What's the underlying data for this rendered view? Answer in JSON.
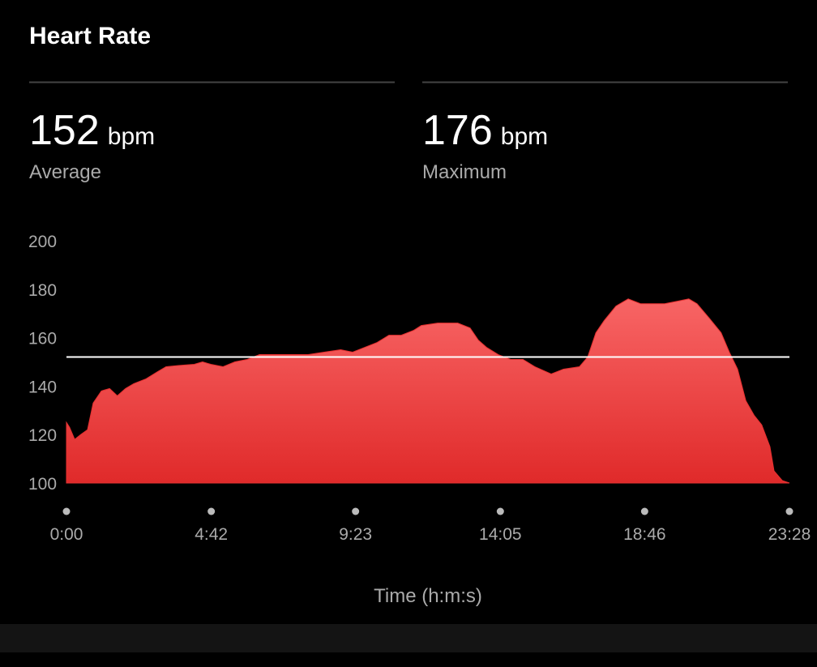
{
  "header": {
    "title": "Heart Rate"
  },
  "stats": [
    {
      "value": 152,
      "unit": "bpm",
      "label": "Average"
    },
    {
      "value": 176,
      "unit": "bpm",
      "label": "Maximum"
    }
  ],
  "chart_data": {
    "type": "area",
    "x_label": "Time (h:m:s)",
    "color": "#f05050",
    "x": [
      0,
      6,
      16,
      28,
      41,
      52,
      68,
      84,
      99,
      115,
      131,
      155,
      178,
      194,
      218,
      249,
      265,
      281,
      305,
      328,
      352,
      376,
      407,
      439,
      470,
      502,
      534,
      557,
      581,
      605,
      628,
      652,
      676,
      691,
      723,
      762,
      786,
      802,
      818,
      841,
      865,
      889,
      912,
      944,
      968,
      999,
      1015,
      1031,
      1047,
      1070,
      1094,
      1118,
      1141,
      1165,
      1189,
      1212,
      1228,
      1252,
      1275,
      1291,
      1307,
      1323,
      1339,
      1354,
      1370,
      1378,
      1394,
      1408
    ],
    "values": [
      125,
      123,
      118,
      120,
      122,
      133,
      138,
      139,
      136,
      139,
      141,
      143,
      146,
      148,
      148.5,
      149,
      150,
      149,
      148,
      150,
      151,
      153,
      153,
      153,
      153,
      154,
      155,
      154,
      156,
      158,
      161,
      161,
      163,
      165,
      166,
      166,
      164,
      159,
      156,
      153,
      151,
      151,
      148,
      145,
      147,
      148,
      152,
      162,
      167,
      173,
      176,
      174,
      174,
      174,
      175,
      176,
      174,
      168,
      162,
      154,
      147,
      134,
      128,
      124,
      115,
      105,
      101,
      100
    ],
    "xlim": [
      0,
      1408
    ],
    "xticks": [
      {
        "value": 0,
        "label": "0:00"
      },
      {
        "value": 282,
        "label": "4:42"
      },
      {
        "value": 563,
        "label": "9:23"
      },
      {
        "value": 845,
        "label": "14:05"
      },
      {
        "value": 1126,
        "label": "18:46"
      },
      {
        "value": 1408,
        "label": "23:28"
      }
    ],
    "ylim": [
      100,
      200
    ],
    "yticks": [
      100,
      120,
      140,
      160,
      180,
      200
    ]
  }
}
